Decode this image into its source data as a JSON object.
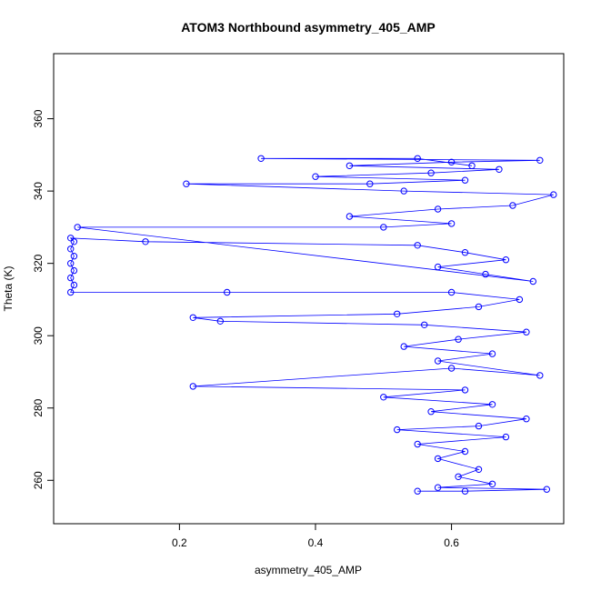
{
  "chart_data": {
    "type": "scatter",
    "title": "ATOM3 Northbound asymmetry_405_AMP",
    "xlabel": "asymmetry_405_AMP",
    "ylabel": "Theta (K)",
    "xlim": [
      0.015,
      0.765
    ],
    "ylim": [
      248,
      378
    ],
    "xticks": [
      0.2,
      0.4,
      0.6
    ],
    "yticks": [
      260,
      280,
      300,
      320,
      340,
      360
    ],
    "style": {
      "series_color": "#0000ff",
      "connect_points": true,
      "marker": "open-circle"
    },
    "series": [
      {
        "values": [
          [
            0.55,
            257
          ],
          [
            0.62,
            257
          ],
          [
            0.74,
            257.5
          ],
          [
            0.58,
            258
          ],
          [
            0.66,
            259
          ],
          [
            0.61,
            261
          ],
          [
            0.64,
            263
          ],
          [
            0.58,
            266
          ],
          [
            0.62,
            268
          ],
          [
            0.55,
            270
          ],
          [
            0.68,
            272
          ],
          [
            0.52,
            274
          ],
          [
            0.64,
            275
          ],
          [
            0.71,
            277
          ],
          [
            0.57,
            279
          ],
          [
            0.66,
            281
          ],
          [
            0.5,
            283
          ],
          [
            0.62,
            285
          ],
          [
            0.22,
            286
          ],
          [
            0.6,
            291
          ],
          [
            0.73,
            289
          ],
          [
            0.58,
            293
          ],
          [
            0.66,
            295
          ],
          [
            0.53,
            297
          ],
          [
            0.61,
            299
          ],
          [
            0.71,
            301
          ],
          [
            0.56,
            303
          ],
          [
            0.26,
            304
          ],
          [
            0.22,
            305
          ],
          [
            0.52,
            306
          ],
          [
            0.64,
            308
          ],
          [
            0.7,
            310
          ],
          [
            0.6,
            312
          ],
          [
            0.27,
            312
          ],
          [
            0.04,
            312
          ],
          [
            0.045,
            314
          ],
          [
            0.04,
            316
          ],
          [
            0.045,
            318
          ],
          [
            0.04,
            320
          ],
          [
            0.045,
            322
          ],
          [
            0.04,
            324
          ],
          [
            0.045,
            326
          ],
          [
            0.04,
            327
          ],
          [
            0.15,
            326
          ],
          [
            0.55,
            325
          ],
          [
            0.62,
            323
          ],
          [
            0.68,
            321
          ],
          [
            0.58,
            319
          ],
          [
            0.65,
            317
          ],
          [
            0.72,
            315
          ],
          [
            0.05,
            330
          ],
          [
            0.5,
            330
          ],
          [
            0.6,
            331
          ],
          [
            0.45,
            333
          ],
          [
            0.58,
            335
          ],
          [
            0.69,
            336
          ],
          [
            0.75,
            339
          ],
          [
            0.53,
            340
          ],
          [
            0.21,
            342
          ],
          [
            0.48,
            342
          ],
          [
            0.62,
            343
          ],
          [
            0.4,
            344
          ],
          [
            0.57,
            345
          ],
          [
            0.67,
            346
          ],
          [
            0.45,
            347
          ],
          [
            0.6,
            348
          ],
          [
            0.73,
            348.5
          ],
          [
            0.32,
            349
          ],
          [
            0.55,
            349
          ],
          [
            0.63,
            347
          ]
        ]
      }
    ]
  }
}
